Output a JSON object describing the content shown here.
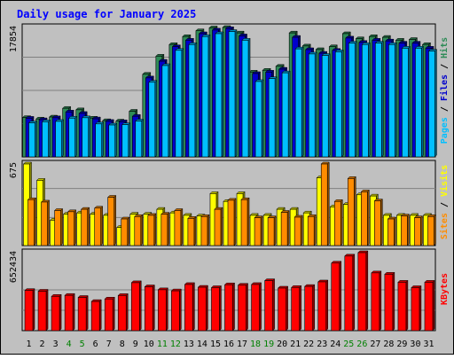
{
  "chart_data": {
    "type": "bar",
    "title": "Daily usage for January 2025",
    "categories": [
      "1",
      "2",
      "3",
      "4",
      "5",
      "6",
      "7",
      "8",
      "9",
      "10",
      "11",
      "12",
      "13",
      "14",
      "15",
      "16",
      "17",
      "18",
      "19",
      "20",
      "21",
      "22",
      "23",
      "24",
      "25",
      "26",
      "27",
      "28",
      "29",
      "30",
      "31"
    ],
    "weekend_days": [
      "4",
      "5",
      "11",
      "12",
      "18",
      "19",
      "25",
      "26"
    ],
    "panels": [
      {
        "id": "hits",
        "ymax_label": "17854",
        "ylim": [
          0,
          17854
        ],
        "legend": [
          "Pages",
          "Files",
          "Hits"
        ],
        "series": [
          {
            "name": "Hits",
            "color": "#2e8b57",
            "values": [
              5430,
              5230,
              5500,
              6700,
              6500,
              5350,
              5000,
              4950,
              6300,
              11400,
              13900,
              15500,
              16600,
              17400,
              17800,
              17854,
              17100,
              11700,
              11950,
              12500,
              17100,
              15300,
              14800,
              15200,
              17000,
              16300,
              16600,
              16500,
              16100,
              16200,
              15500
            ]
          },
          {
            "name": "Files",
            "color": "#0000cd",
            "values": [
              5330,
              5130,
              5400,
              6200,
              6000,
              5250,
              4900,
              4850,
              5600,
              10900,
              13200,
              15200,
              16100,
              17000,
              17500,
              17700,
              16700,
              11500,
              11700,
              12100,
              16500,
              14800,
              14300,
              14700,
              16400,
              15800,
              16100,
              16000,
              15700,
              15700,
              15000
            ]
          },
          {
            "name": "Pages",
            "color": "#00bfff",
            "values": [
              4700,
              4850,
              4900,
              5350,
              5400,
              4550,
              4400,
              4450,
              4950,
              10300,
              12600,
              14700,
              15500,
              16600,
              17000,
              17300,
              16100,
              10400,
              10800,
              11600,
              14900,
              14200,
              14000,
              14500,
              15700,
              15500,
              15700,
              15500,
              15000,
              15000,
              14600
            ]
          }
        ]
      },
      {
        "id": "visits",
        "ymax_label": "675",
        "ylim": [
          0,
          675
        ],
        "legend": [
          "Sites",
          "Visits"
        ],
        "series": [
          {
            "name": "Visits",
            "color": "#ffff00",
            "values": [
              675,
              540,
              210,
              260,
              270,
              260,
              250,
              150,
              260,
              260,
              300,
              270,
              250,
              245,
              430,
              365,
              430,
              250,
              250,
              300,
              300,
              270,
              560,
              320,
              340,
              420,
              410,
              250,
              250,
              250,
              250
            ]
          },
          {
            "name": "Sites",
            "color": "#ff8c00",
            "values": [
              380,
              360,
              290,
              280,
              300,
              310,
              400,
              220,
              240,
              250,
              260,
              290,
              225,
              240,
              300,
              375,
              380,
              230,
              230,
              275,
              235,
              240,
              675,
              365,
              555,
              445,
              370,
              220,
              245,
              230,
              240
            ]
          }
        ]
      },
      {
        "id": "kbytes",
        "ymax_label": "652434",
        "ylim": [
          0,
          652434
        ],
        "legend": [
          "KBytes"
        ],
        "series": [
          {
            "name": "KBytes",
            "color": "#ff0000",
            "values": [
              336000,
              330000,
              287000,
              295000,
              278000,
              244000,
              265000,
              294000,
              401000,
              367000,
              342000,
              333000,
              386000,
              363000,
              360000,
              384000,
              380000,
              386000,
              418000,
              356000,
              361000,
              370000,
              408000,
              565000,
              624000,
              652434,
              483000,
              472000,
              405000,
              360000,
              405000
            ]
          }
        ]
      }
    ]
  }
}
